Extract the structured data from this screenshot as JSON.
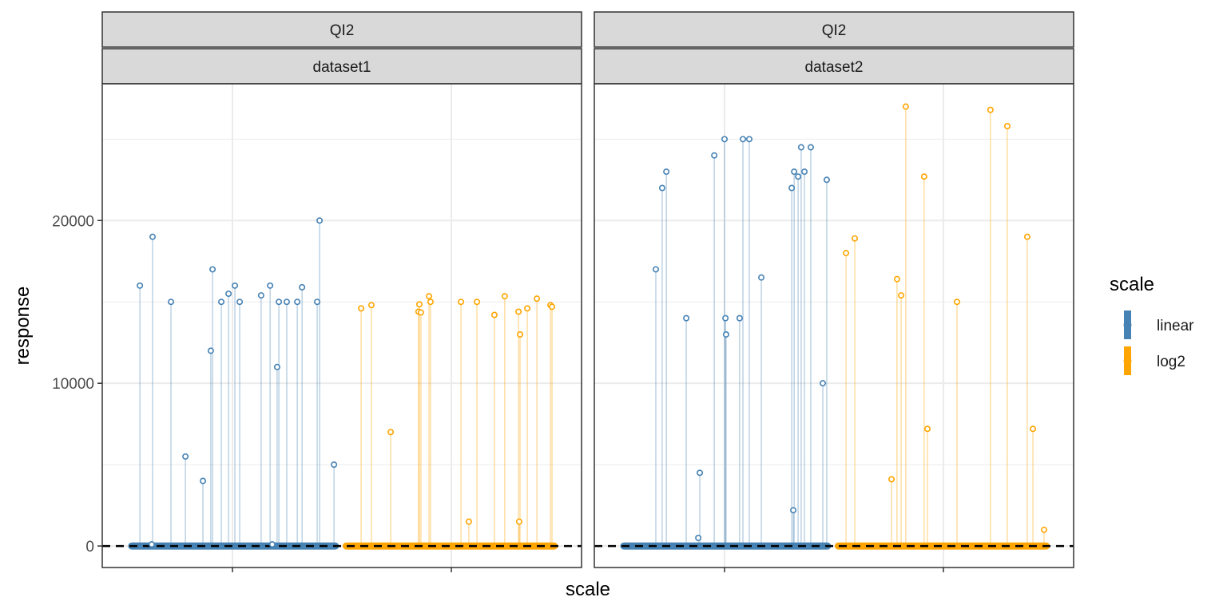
{
  "chart_data": {
    "type": "scatter",
    "subtype": "lollipop",
    "title": "",
    "xlabel": "scale",
    "ylabel": "response",
    "ylim": [
      -1320,
      28400
    ],
    "xlim": [
      0.405,
      2.595
    ],
    "x_categories": [
      "linear",
      "log2"
    ],
    "x_tick_labels": [
      "",
      ""
    ],
    "y_ticks": [
      0,
      10000,
      20000
    ],
    "y_tick_labels": [
      "0",
      "10000",
      "20000"
    ],
    "y_minor_gridlines": [
      5000,
      15000,
      25000
    ],
    "grid": true,
    "reference_line": {
      "y": 0,
      "style": "dashed",
      "color": "#000000"
    },
    "legend": {
      "title": "scale",
      "position": "right",
      "entries": [
        {
          "label": "linear",
          "color": "#4682B4"
        },
        {
          "label": "log2",
          "color": "#FFA500"
        }
      ]
    },
    "facets": [
      {
        "strip_top": "QI2",
        "strip_bottom": "dataset1",
        "series": [
          {
            "name": "linear",
            "color": "#4682B4",
            "points": [
              {
                "x": 0.577,
                "y": 16000
              },
              {
                "x": 0.635,
                "y": 19000
              },
              {
                "x": 0.631,
                "y": 100
              },
              {
                "x": 0.719,
                "y": 15000
              },
              {
                "x": 0.785,
                "y": 5500
              },
              {
                "x": 0.865,
                "y": 4000
              },
              {
                "x": 0.901,
                "y": 12000
              },
              {
                "x": 0.909,
                "y": 17000
              },
              {
                "x": 0.949,
                "y": 15000
              },
              {
                "x": 0.982,
                "y": 15500
              },
              {
                "x": 1.011,
                "y": 16000
              },
              {
                "x": 1.033,
                "y": 15000
              },
              {
                "x": 1.131,
                "y": 15400
              },
              {
                "x": 1.172,
                "y": 16000
              },
              {
                "x": 1.182,
                "y": 100
              },
              {
                "x": 1.204,
                "y": 11000
              },
              {
                "x": 1.212,
                "y": 15000
              },
              {
                "x": 1.248,
                "y": 15000
              },
              {
                "x": 1.296,
                "y": 15000
              },
              {
                "x": 1.318,
                "y": 15900
              },
              {
                "x": 1.387,
                "y": 15000
              },
              {
                "x": 1.398,
                "y": 20000
              },
              {
                "x": 1.464,
                "y": 5000
              }
            ],
            "zero_band": [
              0.54,
              1.47
            ]
          },
          {
            "name": "log2",
            "color": "#FFA500",
            "points": [
              {
                "x": 1.588,
                "y": 14600
              },
              {
                "x": 1.635,
                "y": 14800
              },
              {
                "x": 1.723,
                "y": 7000
              },
              {
                "x": 1.85,
                "y": 14400
              },
              {
                "x": 1.854,
                "y": 14850
              },
              {
                "x": 1.861,
                "y": 14350
              },
              {
                "x": 1.898,
                "y": 15350
              },
              {
                "x": 1.905,
                "y": 15000
              },
              {
                "x": 2.044,
                "y": 15000
              },
              {
                "x": 2.08,
                "y": 1500
              },
              {
                "x": 2.117,
                "y": 15000
              },
              {
                "x": 2.197,
                "y": 14200
              },
              {
                "x": 2.244,
                "y": 15350
              },
              {
                "x": 2.307,
                "y": 14400
              },
              {
                "x": 2.314,
                "y": 13000
              },
              {
                "x": 2.31,
                "y": 1500
              },
              {
                "x": 2.347,
                "y": 14600
              },
              {
                "x": 2.391,
                "y": 15200
              },
              {
                "x": 2.453,
                "y": 14800
              },
              {
                "x": 2.46,
                "y": 14700
              }
            ],
            "zero_band": [
              1.52,
              2.47
            ]
          }
        ]
      },
      {
        "strip_top": "QI2",
        "strip_bottom": "dataset2",
        "series": [
          {
            "name": "linear",
            "color": "#4682B4",
            "points": [
              {
                "x": 0.686,
                "y": 17000
              },
              {
                "x": 0.715,
                "y": 22000
              },
              {
                "x": 0.734,
                "y": 23000
              },
              {
                "x": 0.825,
                "y": 14000
              },
              {
                "x": 0.88,
                "y": 500
              },
              {
                "x": 0.887,
                "y": 4500
              },
              {
                "x": 0.953,
                "y": 24000
              },
              {
                "x": 1.004,
                "y": 14000
              },
              {
                "x": 1.007,
                "y": 13000
              },
              {
                "x": 1.069,
                "y": 14000
              },
              {
                "x": 1.0,
                "y": 25000
              },
              {
                "x": 1.084,
                "y": 25000
              },
              {
                "x": 1.113,
                "y": 25000
              },
              {
                "x": 1.168,
                "y": 16500
              },
              {
                "x": 1.307,
                "y": 22000
              },
              {
                "x": 1.314,
                "y": 2200
              },
              {
                "x": 1.318,
                "y": 23000
              },
              {
                "x": 1.336,
                "y": 22700
              },
              {
                "x": 1.35,
                "y": 24500
              },
              {
                "x": 1.365,
                "y": 23000
              },
              {
                "x": 1.394,
                "y": 24500
              },
              {
                "x": 1.449,
                "y": 10000
              },
              {
                "x": 1.467,
                "y": 22500
              }
            ],
            "zero_band": [
              0.54,
              1.47
            ]
          },
          {
            "name": "log2",
            "color": "#FFA500",
            "points": [
              {
                "x": 1.555,
                "y": 18000
              },
              {
                "x": 1.595,
                "y": 18900
              },
              {
                "x": 1.763,
                "y": 4100
              },
              {
                "x": 1.788,
                "y": 16400
              },
              {
                "x": 1.807,
                "y": 15400
              },
              {
                "x": 1.828,
                "y": 27000
              },
              {
                "x": 1.912,
                "y": 22700
              },
              {
                "x": 1.927,
                "y": 7200
              },
              {
                "x": 2.062,
                "y": 15000
              },
              {
                "x": 2.215,
                "y": 26800
              },
              {
                "x": 2.292,
                "y": 25800
              },
              {
                "x": 2.383,
                "y": 19000
              },
              {
                "x": 2.409,
                "y": 7200
              },
              {
                "x": 2.46,
                "y": 1000
              }
            ],
            "zero_band": [
              1.52,
              2.47
            ]
          }
        ]
      }
    ]
  }
}
